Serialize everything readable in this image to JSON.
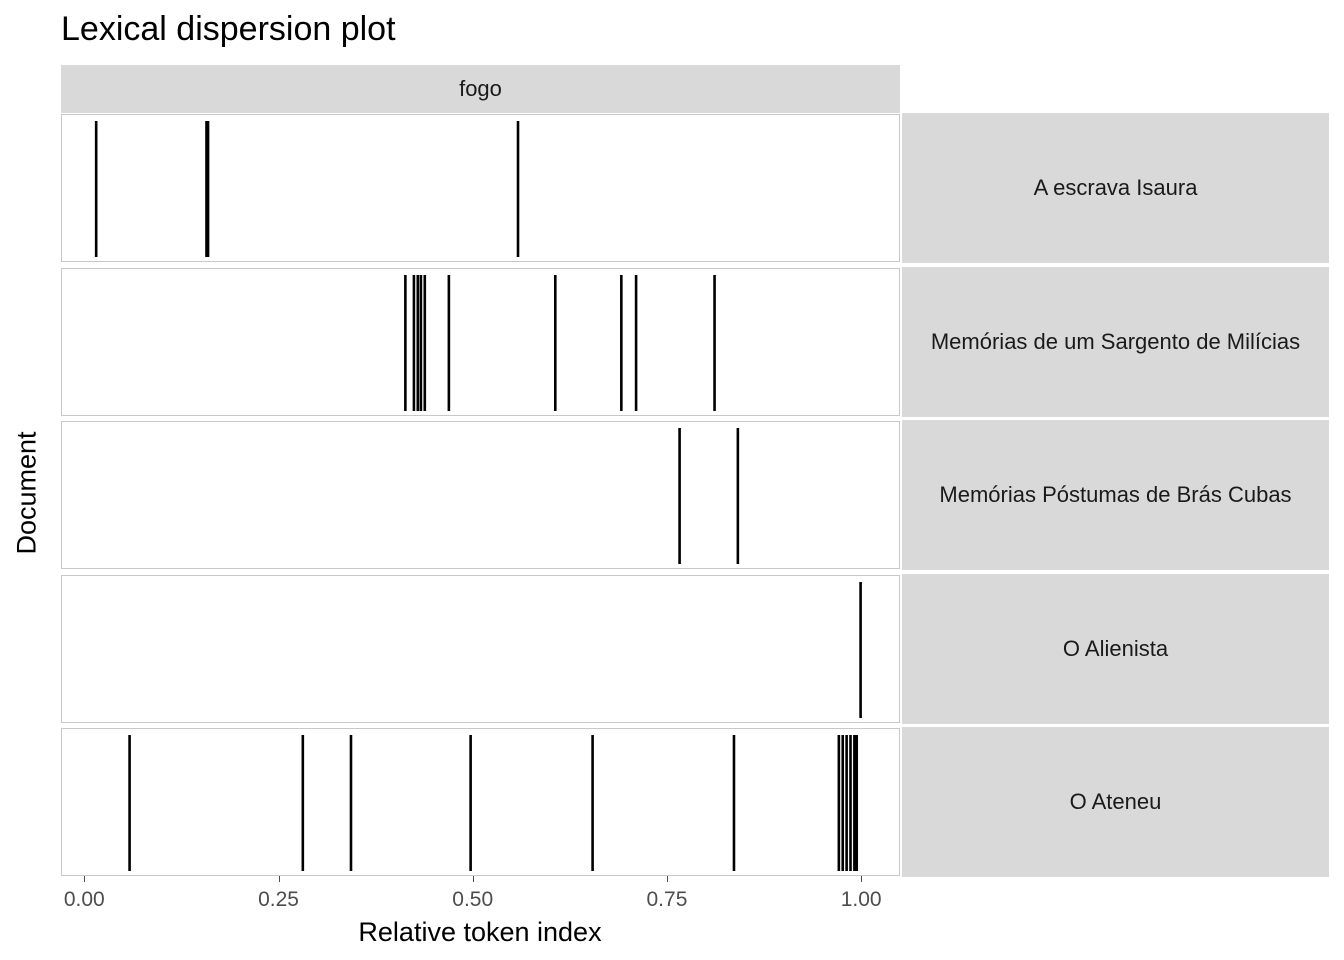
{
  "chart_data": {
    "type": "scatter",
    "title": "Lexical dispersion plot",
    "xlabel": "Relative token index",
    "ylabel": "Document",
    "xlim": [
      -0.03,
      1.05
    ],
    "x_ticks": [
      "0.00",
      "0.25",
      "0.50",
      "0.75",
      "1.00"
    ],
    "x_tick_values": [
      0,
      0.25,
      0.5,
      0.75,
      1.0
    ],
    "grid": false,
    "facet_column": "fogo",
    "facets": [
      {
        "document": "A escrava Isaura",
        "x": [
          0.014,
          0.156,
          0.158,
          0.557
        ]
      },
      {
        "document": "Memórias de um Sargento de Milícias",
        "x": [
          0.412,
          0.423,
          0.428,
          0.432,
          0.437,
          0.468,
          0.605,
          0.69,
          0.709,
          0.81
        ]
      },
      {
        "document": "Memórias Póstumas de Brás Cubas",
        "x": [
          0.765,
          0.84
        ]
      },
      {
        "document": "O Alienista",
        "x": [
          0.998
        ]
      },
      {
        "document": "O Ateneu",
        "x": [
          0.057,
          0.28,
          0.342,
          0.496,
          0.653,
          0.835,
          0.97,
          0.975,
          0.98,
          0.985,
          0.99,
          0.993
        ]
      }
    ],
    "mark_color": "#000000"
  }
}
